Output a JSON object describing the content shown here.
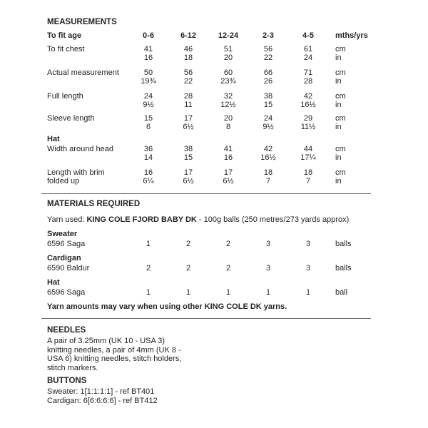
{
  "page": {
    "background": "#ffffff",
    "text_color": "#272324",
    "rule_color": "#6f6f6f"
  },
  "measurements": {
    "title": "MEASUREMENTS",
    "header": {
      "label": "To fit age",
      "sizes": [
        "0-6",
        "6-12",
        "12-24",
        "2-3",
        "4-5"
      ],
      "unit": "mths/yrs"
    },
    "unit_cm": "cm",
    "unit_in": "in",
    "rows": [
      {
        "label": "To fit chest",
        "label2": "",
        "cm": [
          "41",
          "46",
          "51",
          "56",
          "61"
        ],
        "in": [
          "16",
          "18",
          "20",
          "22",
          "24"
        ]
      },
      {
        "label": "Actual measurement",
        "label2": "",
        "cm": [
          "50",
          "56",
          "60",
          "66",
          "71"
        ],
        "in": [
          "19¾",
          "22",
          "23¾",
          "26",
          "28"
        ]
      },
      {
        "label": "Full length",
        "label2": "",
        "cm": [
          "24",
          "28",
          "32",
          "38",
          "42"
        ],
        "in": [
          "9½",
          "11",
          "12½",
          "15",
          "16½"
        ]
      },
      {
        "label": "Sleeve length",
        "label2": "",
        "cm": [
          "15",
          "17",
          "20",
          "24",
          "29"
        ],
        "in": [
          "6",
          "6½",
          "8",
          "9½",
          "11½"
        ]
      }
    ],
    "hat_header": "Hat",
    "hat_rows": [
      {
        "label": "Width around head",
        "label2": "",
        "cm": [
          "36",
          "38",
          "41",
          "42",
          "44"
        ],
        "in": [
          "14",
          "15",
          "16",
          "16½",
          "17¼"
        ]
      },
      {
        "label": "Length with brim",
        "label2": "folded up",
        "cm": [
          "16",
          "17",
          "17",
          "18",
          "18"
        ],
        "in": [
          "6¼",
          "6½",
          "6½",
          "7",
          "7"
        ]
      }
    ]
  },
  "materials": {
    "title": "MATERIALS REQUIRED",
    "yarn_used_prefix": "Yarn used: ",
    "yarn_name": "KING COLE FJORD BABY DK",
    "yarn_suffix": " - 100g balls (250 metres/273 yards approx)",
    "items": [
      {
        "category": "Sweater",
        "shade": "6596 Saga",
        "quantities": [
          "1",
          "2",
          "2",
          "3",
          "3"
        ],
        "unit": "balls"
      },
      {
        "category": "Cardigan",
        "shade": "6590 Baldur",
        "quantities": [
          "2",
          "2",
          "2",
          "3",
          "3"
        ],
        "unit": "balls"
      },
      {
        "category": "Hat",
        "shade": "6596 Saga",
        "quantities": [
          "1",
          "1",
          "1",
          "1",
          "1"
        ],
        "unit": "ball"
      }
    ],
    "note": "Yarn amounts may vary when using other KING COLE DK yarns."
  },
  "needles": {
    "title": "NEEDLES",
    "lines": [
      "A pair of 3.25mm (UK 10 - USA 3)",
      "knitting needles, a pair of 4mm (UK 8 -",
      "USA 6) knitting needles, stitch holders,",
      "stitch markers."
    ]
  },
  "buttons": {
    "title": "BUTTONS",
    "lines": [
      "Sweater: 1[1:1:1:1] - ref BT401",
      "Cardigan: 6[6:6:6:6] - ref BT412"
    ]
  }
}
